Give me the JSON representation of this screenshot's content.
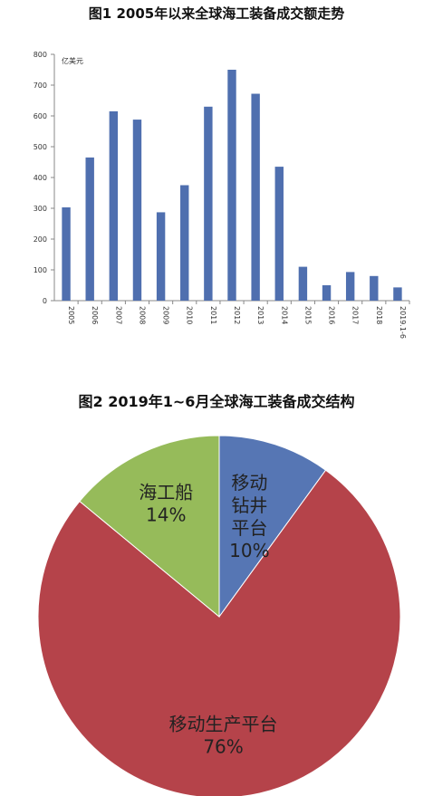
{
  "figure1": {
    "title": "图1  2005年以来全球海工装备成交额走势"
  },
  "figure2": {
    "title": "图2  2019年1~6月全球海工装备成交结构"
  },
  "chart_data": [
    {
      "type": "bar",
      "title": "图1  2005年以来全球海工装备成交额走势",
      "ylabel": "亿美元",
      "xlabel": "",
      "categories": [
        "2005",
        "2006",
        "2007",
        "2008",
        "2009",
        "2010",
        "2011",
        "2012",
        "2013",
        "2014",
        "2015",
        "2016",
        "2017",
        "2018",
        "2019.1-6"
      ],
      "values": [
        303,
        465,
        615,
        588,
        287,
        375,
        630,
        750,
        672,
        435,
        110,
        50,
        93,
        80,
        43
      ],
      "ylim": [
        0,
        800
      ],
      "yticks": [
        0,
        100,
        200,
        300,
        400,
        500,
        600,
        700,
        800
      ],
      "color": "#4F6FAF",
      "grid": false
    },
    {
      "type": "pie",
      "title": "图2  2019年1~6月全球海工装备成交结构",
      "slices": [
        {
          "label": "移动钻井平台",
          "label_lines": [
            "移动",
            "钻井",
            "平台"
          ],
          "percent_label": "10%",
          "value": 10,
          "color": "#5676B4"
        },
        {
          "label": "移动生产平台",
          "label_lines": [
            "移动生产平台"
          ],
          "percent_label": "76%",
          "value": 76,
          "color": "#B5434A"
        },
        {
          "label": "海工船",
          "label_lines": [
            "海工船"
          ],
          "percent_label": "14%",
          "value": 14,
          "color": "#96BB5A"
        }
      ]
    }
  ]
}
